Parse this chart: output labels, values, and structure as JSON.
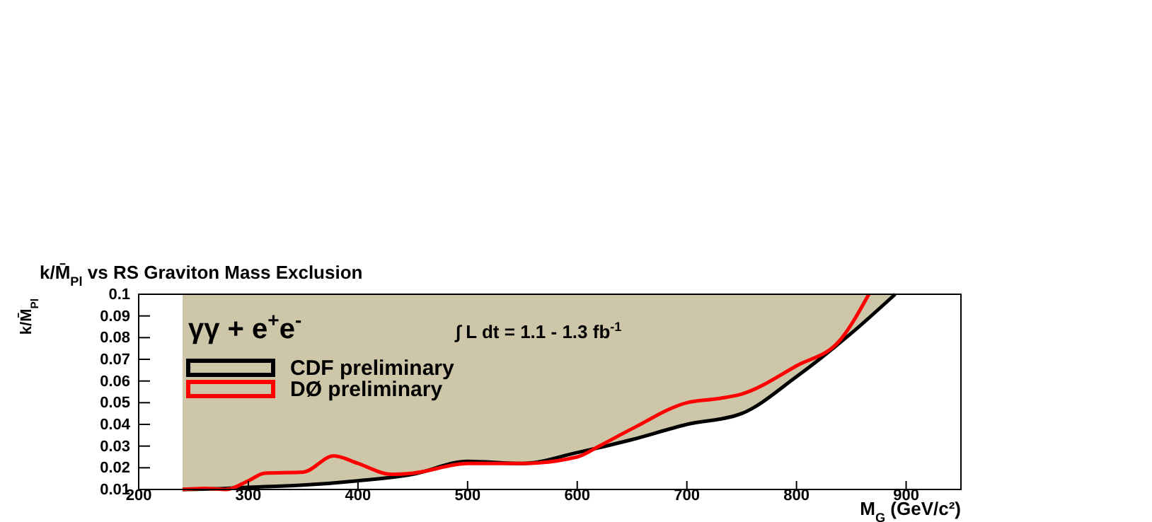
{
  "chart_data": {
    "type": "line",
    "title": "k/M̄$_{Pl}$ vs RS Graviton Mass Exclusion",
    "xlabel": "M$_{G}$ (GeV/c²)",
    "ylabel": "k/M̄$_{Pl}$",
    "annotations": [
      "γγ + e$^{+}$e$^{-}$",
      "∫ L dt =  1.1 - 1.3 fb$^{-1}$"
    ],
    "xlim": [
      200,
      950
    ],
    "xticks": [
      200,
      300,
      400,
      500,
      600,
      700,
      800,
      900
    ],
    "ylim": [
      0.01,
      0.1
    ],
    "yticks": [
      0.01,
      0.02,
      0.03,
      0.04,
      0.05,
      0.06,
      0.07,
      0.08,
      0.09,
      0.1
    ],
    "legend": "top left",
    "grid": false,
    "line_style": "solid",
    "marker": "none",
    "series": [
      {
        "name": "CDF preliminary",
        "color": "#000000",
        "x": [
          240,
          280,
          300,
          350,
          400,
          450,
          500,
          550,
          600,
          650,
          700,
          750,
          800,
          850,
          890
        ],
        "values": [
          0.01,
          0.0105,
          0.011,
          0.012,
          0.014,
          0.017,
          0.023,
          0.022,
          0.027,
          0.033,
          0.04,
          0.045,
          0.062,
          0.082,
          0.1
        ],
        "upper": [
          0.1,
          0.1,
          0.1,
          0.1,
          0.1,
          0.1,
          0.1,
          0.1,
          0.1,
          0.1,
          0.1,
          0.1,
          0.1,
          0.1,
          0.1
        ],
        "lower": [
          0.01,
          0.0105,
          0.011,
          0.012,
          0.014,
          0.017,
          0.023,
          0.022,
          0.027,
          0.033,
          0.04,
          0.045,
          0.062,
          0.082,
          0.1
        ]
      },
      {
        "name": "DØ preliminary",
        "color": "#ff0000",
        "x": [
          240,
          260,
          280,
          300,
          315,
          350,
          378,
          400,
          430,
          450,
          500,
          550,
          600,
          620,
          650,
          700,
          730,
          750,
          800,
          840,
          866
        ],
        "values": [
          0.01,
          0.0105,
          0.01,
          0.014,
          0.0175,
          0.018,
          0.0255,
          0.022,
          0.017,
          0.0175,
          0.022,
          0.022,
          0.025,
          0.03,
          0.038,
          0.05,
          0.052,
          0.054,
          0.067,
          0.079,
          0.1
        ]
      }
    ]
  }
}
